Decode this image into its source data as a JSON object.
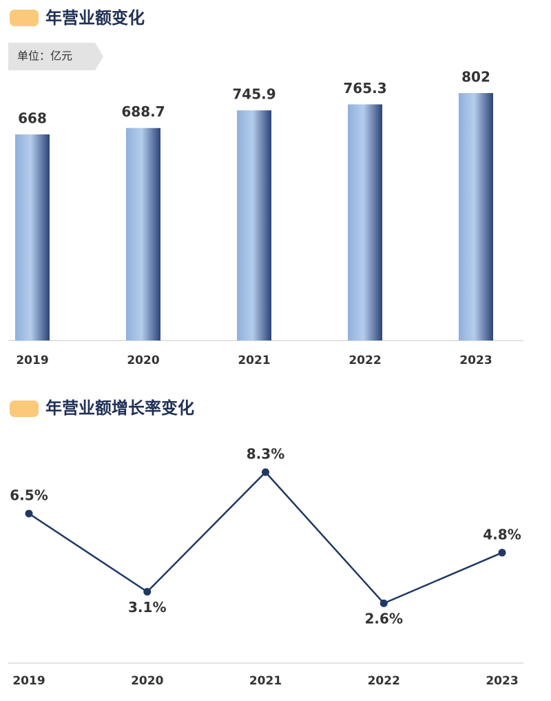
{
  "chart_data": [
    {
      "type": "bar",
      "title": "年营业额变化",
      "unit": "单位：亿元",
      "categories": [
        "2019",
        "2020",
        "2021",
        "2022",
        "2023"
      ],
      "values": [
        668,
        688.7,
        745.9,
        765.3,
        802
      ],
      "color": "#2b4478"
    },
    {
      "type": "line",
      "title": "年营业额增长率变化",
      "categories": [
        "2019",
        "2020",
        "2021",
        "2022",
        "2023"
      ],
      "values": [
        6.5,
        3.1,
        8.3,
        2.6,
        4.8
      ],
      "value_labels": [
        "6.5%",
        "3.1%",
        "8.3%",
        "2.6%",
        "4.8%"
      ],
      "color": "#1f3864"
    }
  ]
}
